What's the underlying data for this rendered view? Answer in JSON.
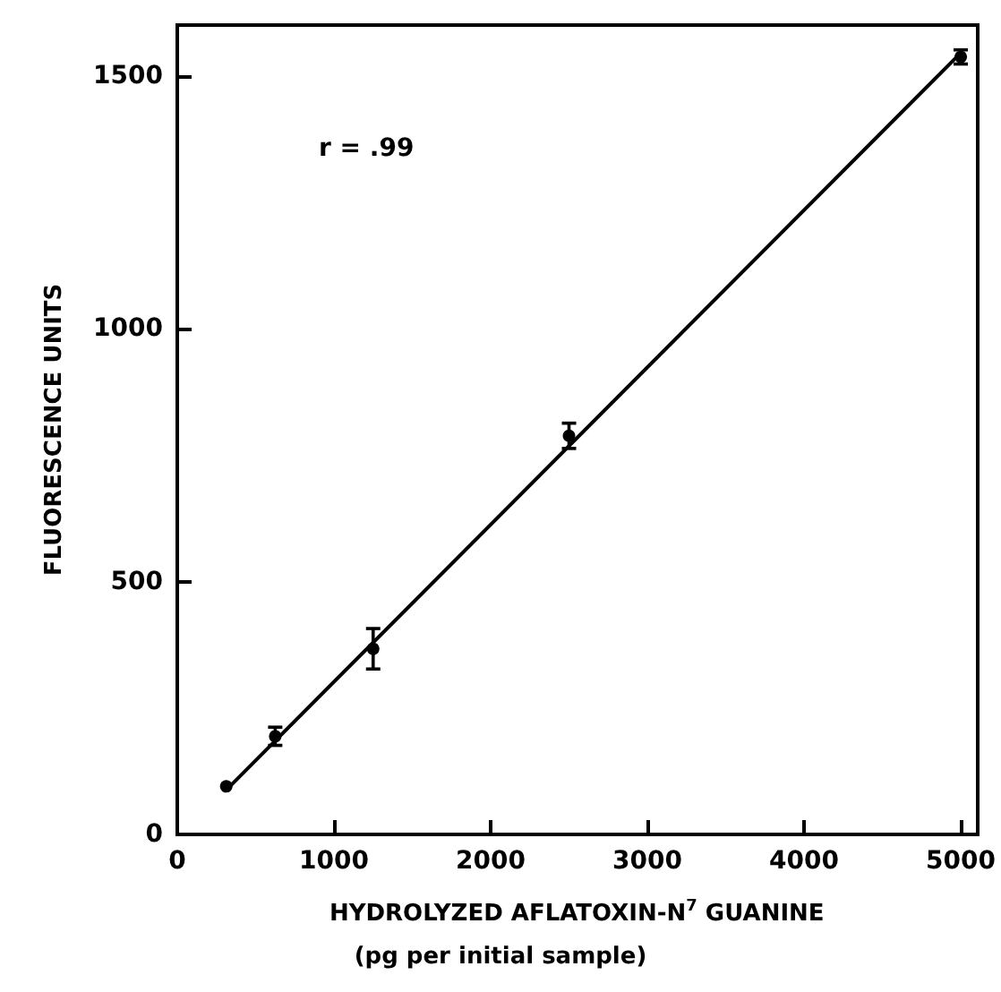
{
  "chart_data": {
    "type": "scatter",
    "xlabel": "HYDROLYZED AFLATOXIN-N$^{7}$ GUANINE",
    "ylabel": "FLUORESCENCE UNITS",
    "annotations": [
      "r = .99",
      "(pg per initial sample)"
    ],
    "x": [
      312.5,
      625,
      1250,
      2500,
      5000
    ],
    "series": [
      {
        "color": "#000000",
        "values": [
          95,
          194,
          367,
          788,
          1537
        ],
        "errors": [
          null,
          18,
          40,
          25,
          14
        ],
        "marker": "circle"
      },
      {
        "type": "line",
        "color": "#000000",
        "x": [
          312.5,
          5000
        ],
        "values": [
          88,
          1545
        ],
        "marker": "none",
        "line_style": "solid"
      }
    ],
    "xlim": [
      0,
      5100
    ],
    "xticks": [
      0,
      1000,
      2000,
      3000,
      4000,
      5000
    ],
    "ylim": [
      0,
      1600
    ],
    "yticks": [
      0,
      500,
      1000,
      1500
    ],
    "grid": false
  }
}
